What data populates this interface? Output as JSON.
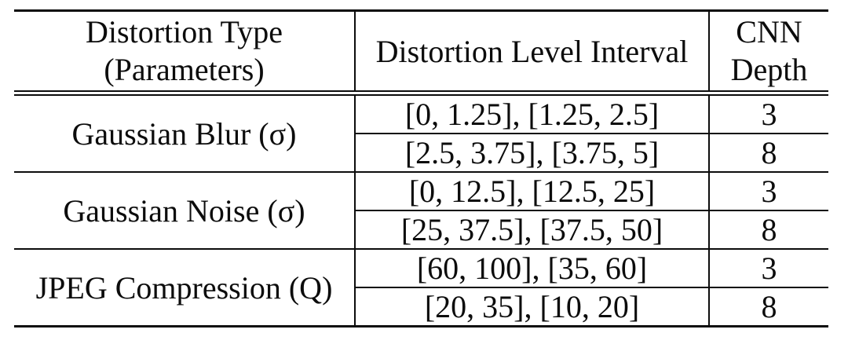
{
  "table": {
    "headers": {
      "col1_line1": "Distortion Type",
      "col1_line2": "(Parameters)",
      "col2": "Distortion Level Interval",
      "col3_line1": "CNN",
      "col3_line2": "Depth"
    },
    "groups": [
      {
        "type": "Gaussian Blur (σ)",
        "rows": [
          {
            "interval": "[0, 1.25], [1.25, 2.5]",
            "depth": "3"
          },
          {
            "interval": "[2.5, 3.75], [3.75, 5]",
            "depth": "8"
          }
        ]
      },
      {
        "type": "Gaussian Noise (σ)",
        "rows": [
          {
            "interval": "[0, 12.5], [12.5, 25]",
            "depth": "3"
          },
          {
            "interval": "[25, 37.5], [37.5, 50]",
            "depth": "8"
          }
        ]
      },
      {
        "type": "JPEG Compression (Q)",
        "rows": [
          {
            "interval": "[60, 100], [35, 60]",
            "depth": "3"
          },
          {
            "interval": "[20, 35], [10, 20]",
            "depth": "8"
          }
        ]
      }
    ],
    "colors": {
      "text": "#0c0c0c",
      "border": "#0c0c0c",
      "background": "#ffffff"
    }
  },
  "chart_data": {
    "type": "table",
    "title": "",
    "columns": [
      "Distortion Type (Parameters)",
      "Distortion Level Interval",
      "CNN Depth"
    ],
    "rows": [
      [
        "Gaussian Blur (σ)",
        "[0, 1.25], [1.25, 2.5]",
        3
      ],
      [
        "Gaussian Blur (σ)",
        "[2.5, 3.75], [3.75, 5]",
        8
      ],
      [
        "Gaussian Noise (σ)",
        "[0, 12.5], [12.5, 25]",
        3
      ],
      [
        "Gaussian Noise (σ)",
        "[25, 37.5], [37.5, 50]",
        8
      ],
      [
        "JPEG Compression (Q)",
        "[60, 100], [35, 60]",
        3
      ],
      [
        "JPEG Compression (Q)",
        "[20, 35], [10, 20]",
        8
      ]
    ]
  }
}
